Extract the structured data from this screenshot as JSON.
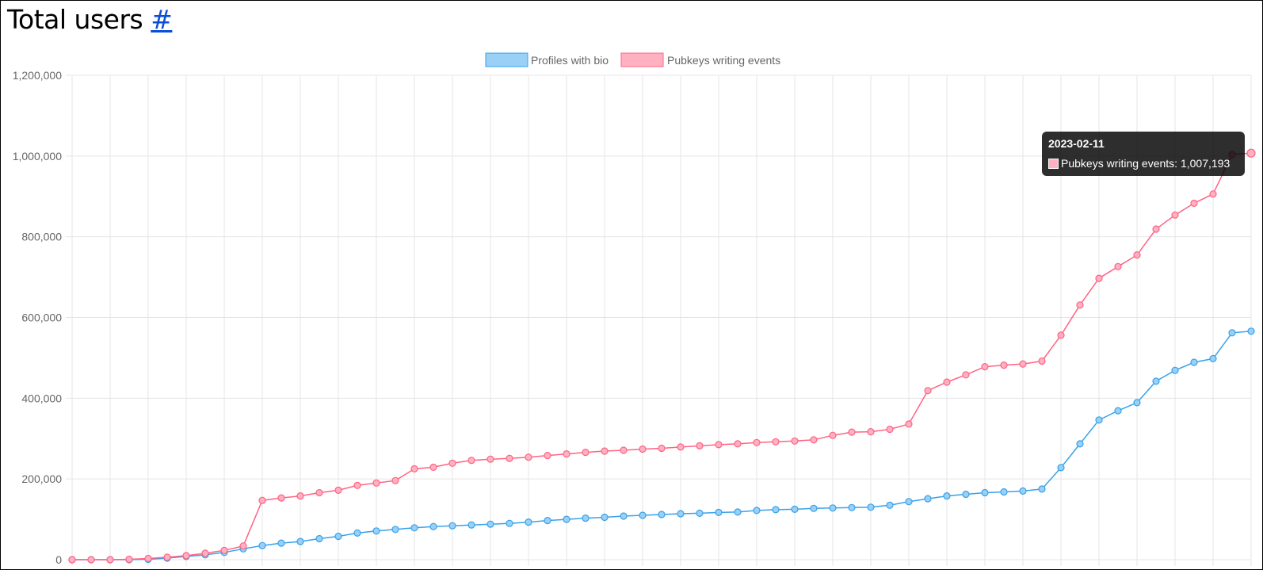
{
  "page": {
    "title": "Total users",
    "anchor_label": "#"
  },
  "colors": {
    "series_a_line": "#36a2eb",
    "series_a_fill": "#9ad0f5",
    "series_b_line": "#ff6384",
    "series_b_fill": "#ffb1c1",
    "grid": "#e5e5e5",
    "text": "#666666"
  },
  "chart_data": {
    "type": "line",
    "title": "",
    "xlabel": "",
    "ylabel": "",
    "ylim": [
      0,
      1200000
    ],
    "y_ticks": [
      "0",
      "200,000",
      "400,000",
      "600,000",
      "800,000",
      "1,000,000",
      "1,200,000"
    ],
    "grid": true,
    "legend_position": "top-center",
    "series": [
      {
        "name": "Profiles with bio",
        "values": [
          0,
          0,
          0,
          0,
          1000,
          4000,
          8000,
          12000,
          18000,
          27000,
          35000,
          41000,
          45000,
          52000,
          58000,
          66000,
          71000,
          75000,
          79000,
          82000,
          84000,
          86000,
          88000,
          90000,
          93000,
          97000,
          100000,
          103000,
          105000,
          108000,
          110000,
          112000,
          114000,
          115000,
          117000,
          118000,
          122000,
          124000,
          125000,
          127000,
          128000,
          129000,
          130000,
          135000,
          144000,
          151000,
          158000,
          162000,
          166000,
          168000,
          170000,
          175000,
          228000,
          287000,
          346000,
          369000,
          389000,
          442000,
          469000,
          489000,
          498000,
          562000,
          566000
        ]
      },
      {
        "name": "Pubkeys writing events",
        "values": [
          0,
          0,
          0,
          1000,
          3000,
          6000,
          10000,
          16000,
          23000,
          34000,
          147000,
          153000,
          158000,
          166000,
          172000,
          184000,
          190000,
          196000,
          225000,
          229000,
          239000,
          246000,
          249000,
          251000,
          254000,
          258000,
          262000,
          266000,
          269000,
          271000,
          274000,
          276000,
          279000,
          282000,
          285000,
          287000,
          290000,
          292000,
          294000,
          297000,
          308000,
          316000,
          317000,
          323000,
          336000,
          419000,
          440000,
          458000,
          478000,
          482000,
          485000,
          492000,
          556000,
          631000,
          697000,
          726000,
          755000,
          819000,
          854000,
          883000,
          906000,
          1004000,
          1007193
        ]
      }
    ],
    "tooltip": {
      "title": "2023-02-11",
      "body": "Pubkeys writing events: 1,007,193"
    }
  }
}
